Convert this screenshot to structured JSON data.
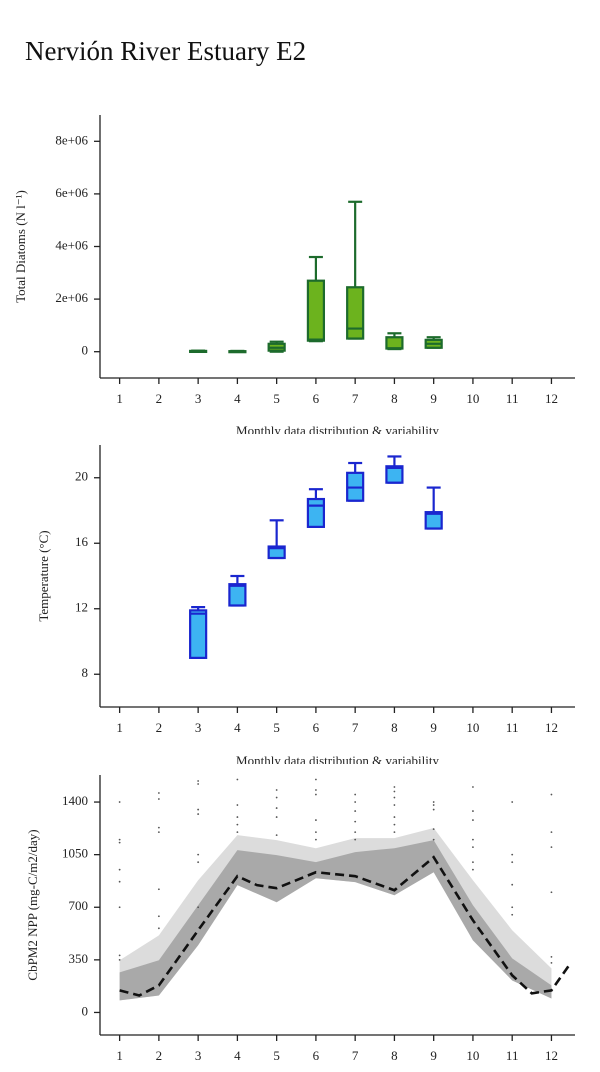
{
  "title": "Nervión River Estuary E2",
  "chart_data": [
    {
      "type": "box",
      "ylabel": "Total Diatoms (N l⁻¹)",
      "xlabel": "Monthly data distribution & variability",
      "xlim": [
        0.5,
        12.6
      ],
      "xticks": [
        1,
        2,
        3,
        4,
        5,
        6,
        7,
        8,
        9,
        10,
        11,
        12
      ],
      "ylim": [
        -1000000,
        9000000
      ],
      "yticks": [
        {
          "value": 0,
          "label": "0"
        },
        {
          "value": 2000000,
          "label": "2e+06"
        },
        {
          "value": 4000000,
          "label": "4e+06"
        },
        {
          "value": 6000000,
          "label": "6e+06"
        },
        {
          "value": 8000000,
          "label": "8e+06"
        }
      ],
      "fill": "#6cb31e",
      "stroke": "#1d6b2c",
      "boxes": [
        {
          "x": 3,
          "min": 0,
          "q1": 10000,
          "median": 20000,
          "q3": 30000,
          "max": 40000
        },
        {
          "x": 4,
          "min": 0,
          "q1": 0,
          "median": 10000,
          "q3": 20000,
          "max": 30000
        },
        {
          "x": 5,
          "min": 0,
          "q1": 40000,
          "median": 150000,
          "q3": 300000,
          "max": 380000
        },
        {
          "x": 6,
          "min": 400000,
          "q1": 420000,
          "median": 460000,
          "q3": 2700000,
          "max": 3600000
        },
        {
          "x": 7,
          "min": 500000,
          "q1": 500000,
          "median": 880000,
          "q3": 2450000,
          "max": 5700000
        },
        {
          "x": 8,
          "min": 100000,
          "q1": 120000,
          "median": 130000,
          "q3": 550000,
          "max": 700000
        },
        {
          "x": 9,
          "min": 150000,
          "q1": 150000,
          "median": 300000,
          "q3": 450000,
          "max": 550000
        }
      ]
    },
    {
      "type": "box",
      "ylabel": "Temperature (°C)",
      "xlabel": "Monthly data distribution & variability",
      "xlim": [
        0.5,
        12.6
      ],
      "xticks": [
        1,
        2,
        3,
        4,
        5,
        6,
        7,
        8,
        9,
        10,
        11,
        12
      ],
      "ylim": [
        6,
        22
      ],
      "yticks": [
        8,
        12,
        16,
        20
      ],
      "fill": "#3db4f2",
      "stroke": "#1a26cf",
      "boxes": [
        {
          "x": 3,
          "min": 9,
          "q1": 9,
          "median": 11.7,
          "q3": 11.9,
          "max": 12.1
        },
        {
          "x": 4,
          "min": 12.2,
          "q1": 12.2,
          "median": 13.4,
          "q3": 13.5,
          "max": 14
        },
        {
          "x": 5,
          "min": 15.1,
          "q1": 15.1,
          "median": 15.7,
          "q3": 15.8,
          "max": 17.4
        },
        {
          "x": 6,
          "min": 17,
          "q1": 17,
          "median": 18.3,
          "q3": 18.7,
          "max": 19.3
        },
        {
          "x": 7,
          "min": 18.6,
          "q1": 18.6,
          "median": 19.4,
          "q3": 20.3,
          "max": 20.9
        },
        {
          "x": 8,
          "min": 19.7,
          "q1": 19.7,
          "median": 20.6,
          "q3": 20.7,
          "max": 21.3
        },
        {
          "x": 9,
          "min": 16.9,
          "q1": 16.9,
          "median": 17.8,
          "q3": 17.9,
          "max": 19.4
        }
      ]
    },
    {
      "type": "line",
      "ylabel": "CbPM2 NPP (mg-C/m2/day)",
      "xlim": [
        0.5,
        12.6
      ],
      "xticks": [
        1,
        2,
        3,
        4,
        5,
        6,
        7,
        8,
        9,
        10,
        11,
        12
      ],
      "ylim": [
        -150,
        1580
      ],
      "yticks": [
        0,
        350,
        700,
        1050,
        1400
      ],
      "bands": [
        {
          "color": "#dcdcdc",
          "x": [
            1,
            2,
            3,
            4,
            5,
            6,
            7,
            8,
            9,
            10,
            11,
            12
          ],
          "upper": [
            347,
            513,
            880,
            1180,
            1147,
            1093,
            1160,
            1160,
            1227,
            880,
            547,
            293
          ],
          "lower": [
            80,
            113,
            447,
            847,
            733,
            893,
            867,
            780,
            933,
            480,
            213,
            93
          ]
        },
        {
          "color": "#a9a9a9",
          "x": [
            1,
            2,
            3,
            4,
            5,
            6,
            7,
            8,
            9,
            10,
            11,
            12
          ],
          "upper": [
            267,
            347,
            713,
            1080,
            1047,
            1000,
            1067,
            1093,
            1147,
            713,
            360,
            180
          ],
          "lower": [
            80,
            113,
            447,
            847,
            733,
            893,
            867,
            780,
            933,
            480,
            213,
            93
          ]
        }
      ],
      "line": {
        "color": "#111111",
        "x": [
          1,
          1.5,
          2,
          3,
          4,
          4.5,
          5,
          6,
          7,
          8,
          9,
          10,
          11,
          11.5,
          12,
          12.5
        ],
        "values": [
          147,
          113,
          180,
          547,
          907,
          847,
          827,
          933,
          907,
          813,
          1033,
          613,
          247,
          127,
          147,
          333
        ]
      },
      "points": {
        "color": "#555555",
        "x": [
          1,
          1,
          1,
          1,
          1,
          1,
          1,
          1,
          2,
          2,
          2,
          2,
          2,
          2,
          2,
          3,
          3,
          3,
          3,
          3,
          3,
          3,
          4,
          4,
          4,
          4,
          4,
          5,
          5,
          5,
          5,
          5,
          6,
          6,
          6,
          6,
          6,
          6,
          7,
          7,
          7,
          7,
          7,
          7,
          8,
          8,
          8,
          8,
          8,
          8,
          8,
          9,
          9,
          9,
          9,
          9,
          10,
          10,
          10,
          10,
          10,
          10,
          10,
          11,
          11,
          11,
          11,
          11,
          11,
          12,
          12,
          12,
          12,
          12,
          12
        ],
        "y": [
          1400,
          1150,
          1130,
          950,
          870,
          700,
          380,
          350,
          1460,
          1420,
          1230,
          1200,
          820,
          640,
          560,
          1540,
          1520,
          1350,
          1320,
          1050,
          1000,
          700,
          1550,
          1380,
          1300,
          1250,
          1200,
          1480,
          1430,
          1360,
          1300,
          1180,
          1550,
          1480,
          1450,
          1280,
          1200,
          1150,
          1450,
          1400,
          1340,
          1270,
          1200,
          1150,
          1500,
          1470,
          1430,
          1380,
          1300,
          1250,
          1200,
          1400,
          1380,
          1350,
          1220,
          1150,
          1500,
          1340,
          1280,
          1150,
          1100,
          1000,
          950,
          1400,
          1050,
          1000,
          850,
          700,
          650,
          1450,
          1200,
          1100,
          800,
          370,
          330
        ]
      }
    }
  ]
}
